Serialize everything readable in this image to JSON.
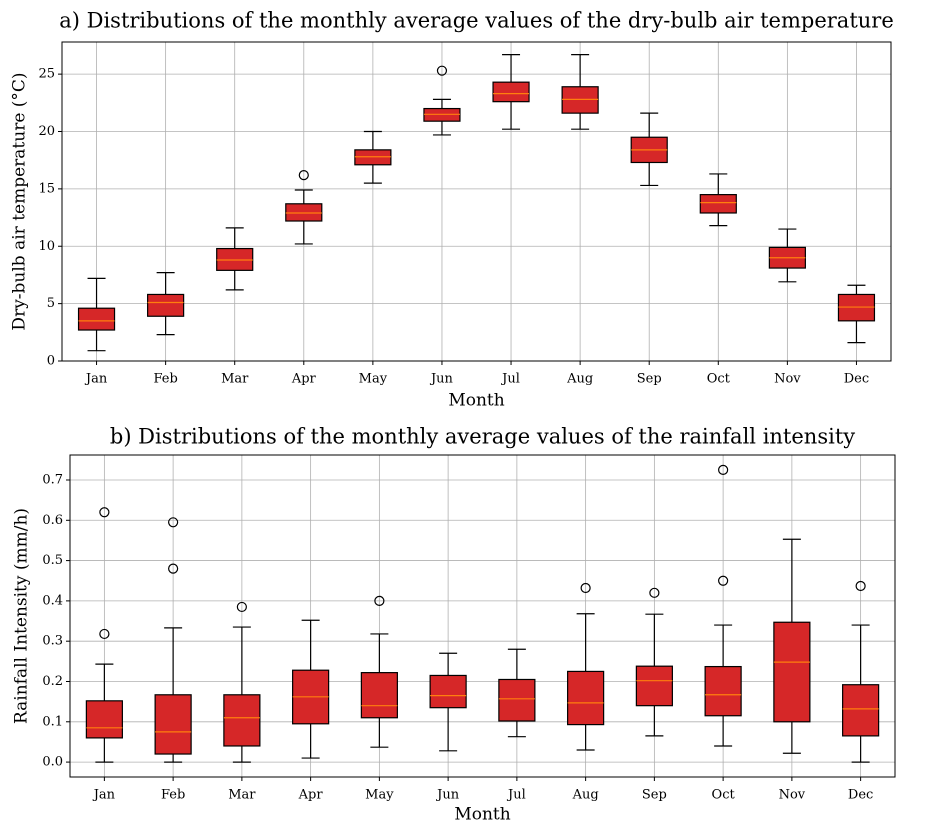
{
  "chart_data": [
    {
      "type": "box",
      "title": "a) Distributions of the monthly average values of the dry-bulb air temperature",
      "x_label": "Month",
      "y_label": "Dry-bulb air temperature (°C)",
      "categories": [
        "Jan",
        "Feb",
        "Mar",
        "Apr",
        "May",
        "Jun",
        "Jul",
        "Aug",
        "Sep",
        "Oct",
        "Nov",
        "Dec"
      ],
      "boxes": [
        {
          "whislo": 0.9,
          "q1": 2.7,
          "med": 3.5,
          "q3": 4.6,
          "whishi": 7.2,
          "fliers": []
        },
        {
          "whislo": 2.3,
          "q1": 3.9,
          "med": 5.1,
          "q3": 5.8,
          "whishi": 7.7,
          "fliers": []
        },
        {
          "whislo": 6.2,
          "q1": 7.9,
          "med": 8.8,
          "q3": 9.8,
          "whishi": 11.6,
          "fliers": []
        },
        {
          "whislo": 10.2,
          "q1": 12.2,
          "med": 12.9,
          "q3": 13.7,
          "whishi": 14.9,
          "fliers": [
            16.2
          ]
        },
        {
          "whislo": 15.5,
          "q1": 17.1,
          "med": 17.8,
          "q3": 18.4,
          "whishi": 20.0,
          "fliers": []
        },
        {
          "whislo": 19.7,
          "q1": 20.9,
          "med": 21.5,
          "q3": 22.0,
          "whishi": 22.8,
          "fliers": [
            25.3
          ]
        },
        {
          "whislo": 20.2,
          "q1": 22.6,
          "med": 23.3,
          "q3": 24.3,
          "whishi": 26.7,
          "fliers": []
        },
        {
          "whislo": 20.2,
          "q1": 21.6,
          "med": 22.8,
          "q3": 23.9,
          "whishi": 26.7,
          "fliers": []
        },
        {
          "whislo": 15.3,
          "q1": 17.3,
          "med": 18.4,
          "q3": 19.5,
          "whishi": 21.6,
          "fliers": []
        },
        {
          "whislo": 11.8,
          "q1": 12.9,
          "med": 13.8,
          "q3": 14.5,
          "whishi": 16.3,
          "fliers": []
        },
        {
          "whislo": 6.9,
          "q1": 8.1,
          "med": 9.0,
          "q3": 9.9,
          "whishi": 11.5,
          "fliers": []
        },
        {
          "whislo": 1.6,
          "q1": 3.5,
          "med": 4.7,
          "q3": 5.8,
          "whishi": 6.6,
          "fliers": []
        }
      ],
      "color": "#d62728",
      "median_color": "#ff7f0e",
      "ylim": [
        0,
        27.8
      ],
      "yticks": [
        0,
        5,
        10,
        15,
        20,
        25
      ],
      "grid": true
    },
    {
      "type": "box",
      "title": "b) Distributions of the monthly average values of the rainfall intensity",
      "x_label": "Month",
      "y_label": "Rainfall Intensity (mm/h)",
      "categories": [
        "Jan",
        "Feb",
        "Mar",
        "Apr",
        "May",
        "Jun",
        "Jul",
        "Aug",
        "Sep",
        "Oct",
        "Nov",
        "Dec"
      ],
      "boxes": [
        {
          "whislo": 0.0,
          "q1": 0.06,
          "med": 0.085,
          "q3": 0.152,
          "whishi": 0.243,
          "fliers": [
            0.318,
            0.62
          ]
        },
        {
          "whislo": 0.0,
          "q1": 0.02,
          "med": 0.075,
          "q3": 0.167,
          "whishi": 0.333,
          "fliers": [
            0.48,
            0.595
          ]
        },
        {
          "whislo": 0.0,
          "q1": 0.04,
          "med": 0.11,
          "q3": 0.167,
          "whishi": 0.335,
          "fliers": [
            0.385
          ]
        },
        {
          "whislo": 0.01,
          "q1": 0.095,
          "med": 0.162,
          "q3": 0.228,
          "whishi": 0.352,
          "fliers": []
        },
        {
          "whislo": 0.037,
          "q1": 0.11,
          "med": 0.14,
          "q3": 0.222,
          "whishi": 0.318,
          "fliers": [
            0.4
          ]
        },
        {
          "whislo": 0.028,
          "q1": 0.135,
          "med": 0.165,
          "q3": 0.215,
          "whishi": 0.27,
          "fliers": []
        },
        {
          "whislo": 0.063,
          "q1": 0.102,
          "med": 0.157,
          "q3": 0.205,
          "whishi": 0.28,
          "fliers": []
        },
        {
          "whislo": 0.03,
          "q1": 0.093,
          "med": 0.147,
          "q3": 0.225,
          "whishi": 0.368,
          "fliers": [
            0.432
          ]
        },
        {
          "whislo": 0.065,
          "q1": 0.14,
          "med": 0.202,
          "q3": 0.238,
          "whishi": 0.367,
          "fliers": [
            0.42
          ]
        },
        {
          "whislo": 0.04,
          "q1": 0.115,
          "med": 0.167,
          "q3": 0.237,
          "whishi": 0.34,
          "fliers": [
            0.45,
            0.725
          ]
        },
        {
          "whislo": 0.022,
          "q1": 0.1,
          "med": 0.248,
          "q3": 0.347,
          "whishi": 0.553,
          "fliers": []
        },
        {
          "whislo": 0.0,
          "q1": 0.065,
          "med": 0.132,
          "q3": 0.192,
          "whishi": 0.34,
          "fliers": [
            0.437
          ]
        }
      ],
      "color": "#d62728",
      "median_color": "#ff7f0e",
      "ylim": [
        -0.037,
        0.762
      ],
      "yticks": [
        {
          "value": 0,
          "label": "0.0"
        },
        0.1,
        0.2,
        0.3,
        0.4,
        0.5,
        0.6,
        0.7
      ],
      "grid": true
    }
  ]
}
